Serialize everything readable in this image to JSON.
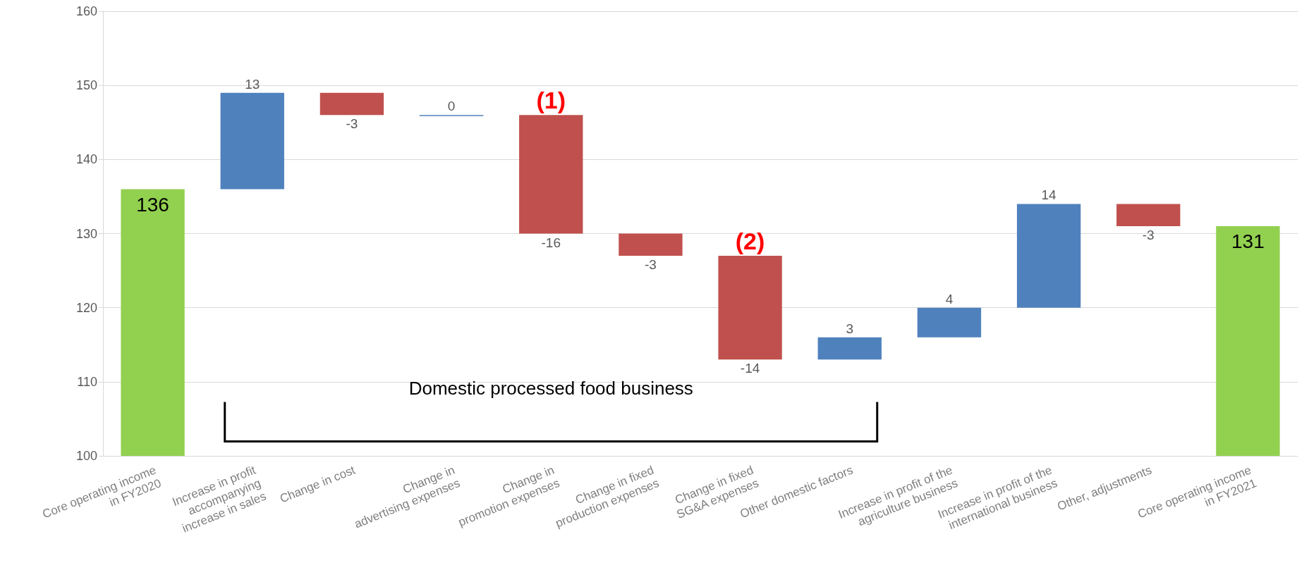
{
  "chart_data": {
    "type": "bar",
    "categories": [
      "Core operating income\nin FY2020",
      "Increase in profit\naccompanying\nincrease in sales",
      "Change in cost",
      "Change in\nadvertising expenses",
      "Change in\npromotion expenses",
      "Change in fixed\nproduction expenses",
      "Change in fixed\nSG&A expenses",
      "Other domestic factors",
      "Increase in profit of the\nagriculture business",
      "Increase in profit of the\ninternational business",
      "Other, adjustments",
      "Core operating income\nin FY2021"
    ],
    "values": [
      136,
      13,
      -3,
      0,
      -16,
      -3,
      -14,
      3,
      4,
      14,
      -3,
      131
    ],
    "base": [
      null,
      136,
      149,
      146,
      146,
      130,
      127,
      113,
      116,
      120,
      134,
      null
    ],
    "colors": [
      "#92d050",
      "#4f81bd",
      "#c0504d",
      "#4f81bd",
      "#c0504d",
      "#c0504d",
      "#c0504d",
      "#4f81bd",
      "#4f81bd",
      "#4f81bd",
      "#c0504d",
      "#92d050"
    ],
    "data_labels": true,
    "ylim": [
      100,
      160
    ],
    "yticks": [
      100,
      110,
      120,
      130,
      140,
      150,
      160
    ],
    "grid": "y",
    "annotations": [
      {
        "text": "(1)",
        "x": "Change in\npromotion expenses",
        "y": 146
      },
      {
        "text": "(2)",
        "x": "Change in fixed\nSG&A expenses",
        "y": 127
      },
      "Domestic processed food business"
    ]
  }
}
